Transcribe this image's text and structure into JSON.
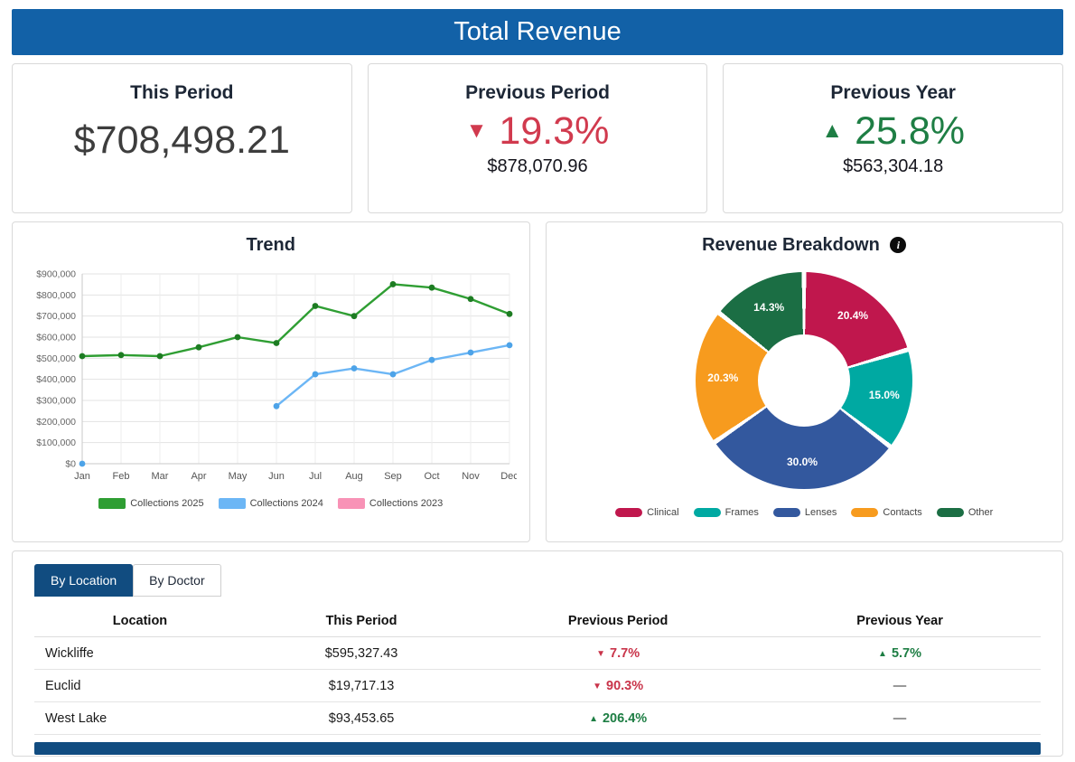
{
  "header": {
    "title": "Total Revenue"
  },
  "icons": {
    "down": "▼",
    "up": "▲"
  },
  "kpis": {
    "this_period": {
      "label": "This Period",
      "value": "$708,498.21"
    },
    "previous_period": {
      "label": "Previous Period",
      "direction": "down",
      "percent": "19.3%",
      "amount": "$878,070.96"
    },
    "previous_year": {
      "label": "Previous Year",
      "direction": "up",
      "percent": "25.8%",
      "amount": "$563,304.18"
    }
  },
  "breakdown": {
    "info_glyph": "i"
  },
  "tabs": [
    {
      "label": "By Location",
      "active": true
    },
    {
      "label": "By Doctor",
      "active": false
    }
  ],
  "table": {
    "headers": [
      "Location",
      "This Period",
      "Previous Period",
      "Previous Year"
    ],
    "rows": [
      {
        "location": "Wickliffe",
        "this_period": "$595,327.43",
        "prev_period": {
          "dir": "down",
          "text": "7.7%"
        },
        "prev_year": {
          "dir": "up",
          "text": "5.7%"
        }
      },
      {
        "location": "Euclid",
        "this_period": "$19,717.13",
        "prev_period": {
          "dir": "down",
          "text": "90.3%"
        },
        "prev_year": {
          "dir": "none",
          "text": "—"
        }
      },
      {
        "location": "West Lake",
        "this_period": "$93,453.65",
        "prev_period": {
          "dir": "up",
          "text": "206.4%"
        },
        "prev_year": {
          "dir": "none",
          "text": "—"
        }
      }
    ]
  },
  "chart_data": [
    {
      "type": "line",
      "title": "Trend",
      "x": [
        "Jan",
        "Feb",
        "Mar",
        "Apr",
        "May",
        "Jun",
        "Jul",
        "Aug",
        "Sep",
        "Oct",
        "Nov",
        "Dec"
      ],
      "series": [
        {
          "name": "Collections 2025",
          "color": "#2f9e33",
          "marker_color": "#1d7c22",
          "values": [
            510000,
            515000,
            510000,
            552000,
            600000,
            572000,
            748000,
            700000,
            851000,
            835000,
            781000,
            710000
          ]
        },
        {
          "name": "Collections 2024",
          "color": "#6cb6f5",
          "marker_color": "#4da3e8",
          "values": [
            0,
            null,
            null,
            null,
            null,
            273000,
            424000,
            452000,
            424000,
            492000,
            527000,
            562000
          ]
        },
        {
          "name": "Collections 2023",
          "color": "#f892b6",
          "marker_color": "#f37ba5",
          "values": [
            null,
            null,
            null,
            null,
            null,
            null,
            null,
            null,
            null,
            null,
            null,
            null
          ]
        }
      ],
      "ylim": [
        0,
        900000
      ],
      "ytick_step": 100000,
      "ytick_prefix": "$",
      "grid": true,
      "legend_position": "bottom"
    },
    {
      "type": "pie",
      "donut": true,
      "title": "Revenue Breakdown",
      "labels": [
        "Clinical",
        "Frames",
        "Lenses",
        "Contacts",
        "Other"
      ],
      "values": [
        20.4,
        15.0,
        30.0,
        20.3,
        14.3
      ],
      "colors": [
        "#c0174d",
        "#00a9a2",
        "#33589e",
        "#f79b1e",
        "#1b6e44"
      ],
      "legend_position": "bottom"
    }
  ]
}
